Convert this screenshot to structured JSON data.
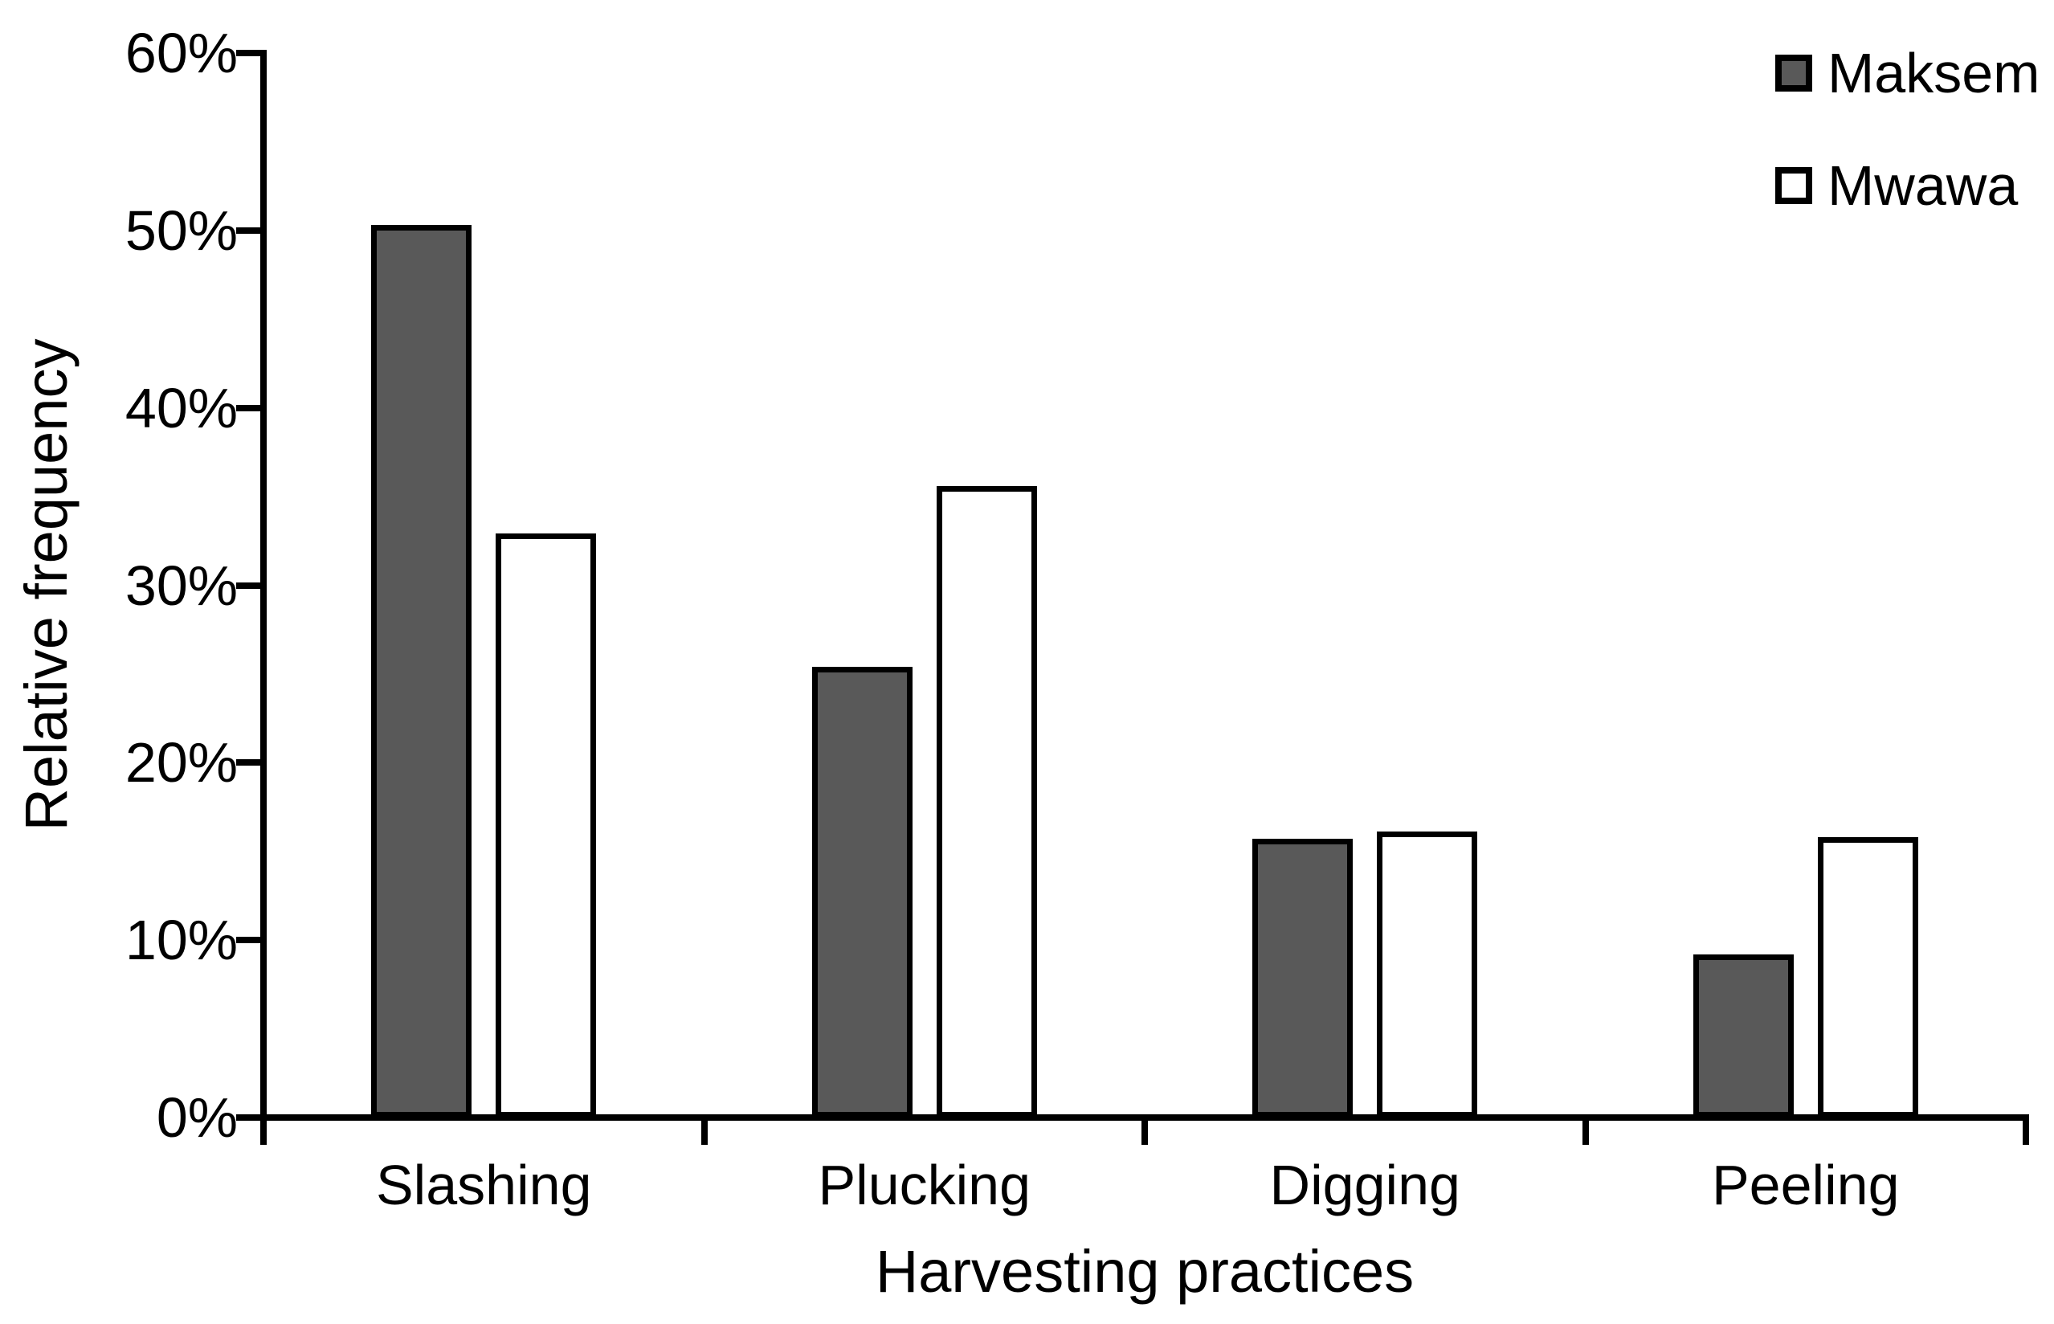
{
  "chart_data": {
    "type": "bar",
    "title": "",
    "xlabel": "Harvesting practices",
    "ylabel": "Relative frequency",
    "categories": [
      "Slashing",
      "Plucking",
      "Digging",
      "Peeling"
    ],
    "series": [
      {
        "name": "Maksem",
        "color": "#595959",
        "values": [
          50.3,
          25.4,
          15.7,
          9.2
        ]
      },
      {
        "name": "Mwawa",
        "color": "#ffffff",
        "values": [
          32.9,
          35.6,
          16.1,
          15.8
        ]
      }
    ],
    "ylim": [
      0,
      60
    ],
    "y_tick_step": 10,
    "y_tick_labels": [
      "0%",
      "10%",
      "20%",
      "30%",
      "40%",
      "50%",
      "60%"
    ],
    "grid": false,
    "legend_position": "top-right",
    "bar_outline_color": "#000000",
    "axis_color": "#000000"
  }
}
